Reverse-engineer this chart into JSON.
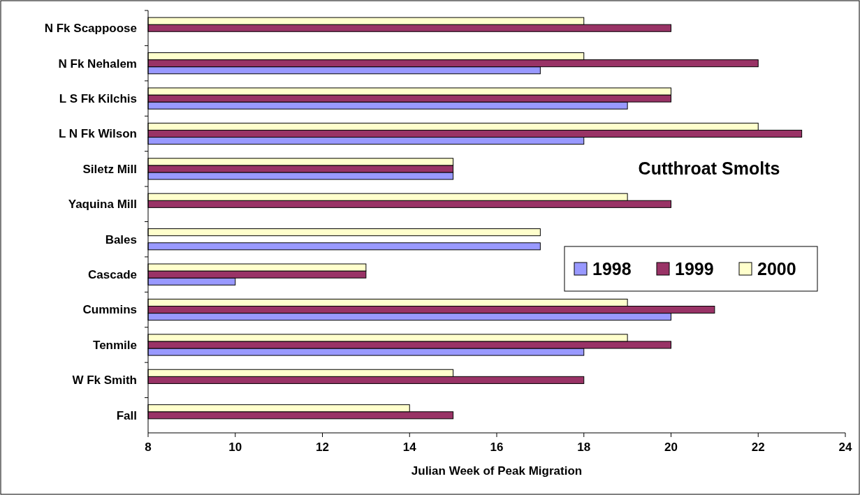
{
  "chart_data": {
    "type": "bar",
    "orientation": "horizontal",
    "title": "Cutthroat Smolts",
    "xlabel": "Julian Week of Peak Migration",
    "categories": [
      "N Fk Scappoose",
      "N Fk Nehalem",
      "L S Fk Kilchis",
      "L N Fk Wilson",
      "Siletz Mill",
      "Yaquina Mill",
      "Bales",
      "Cascade",
      "Cummins",
      "Tenmile",
      "W Fk Smith",
      "Fall"
    ],
    "series": [
      {
        "name": "1998",
        "color": "#9999ff",
        "values": [
          null,
          17,
          19,
          18,
          15,
          null,
          17,
          10,
          20,
          18,
          null,
          null
        ]
      },
      {
        "name": "1999",
        "color": "#993366",
        "values": [
          20,
          22,
          20,
          23,
          15,
          20,
          null,
          13,
          21,
          20,
          18,
          15
        ]
      },
      {
        "name": "2000",
        "color": "#ffffcc",
        "values": [
          18,
          18,
          20,
          22,
          15,
          19,
          17,
          13,
          19,
          19,
          15,
          14
        ]
      }
    ],
    "xlim": [
      8,
      24
    ],
    "xticks": [
      8,
      10,
      12,
      14,
      16,
      18,
      20,
      22,
      24
    ],
    "grid": false,
    "legend": "right"
  }
}
